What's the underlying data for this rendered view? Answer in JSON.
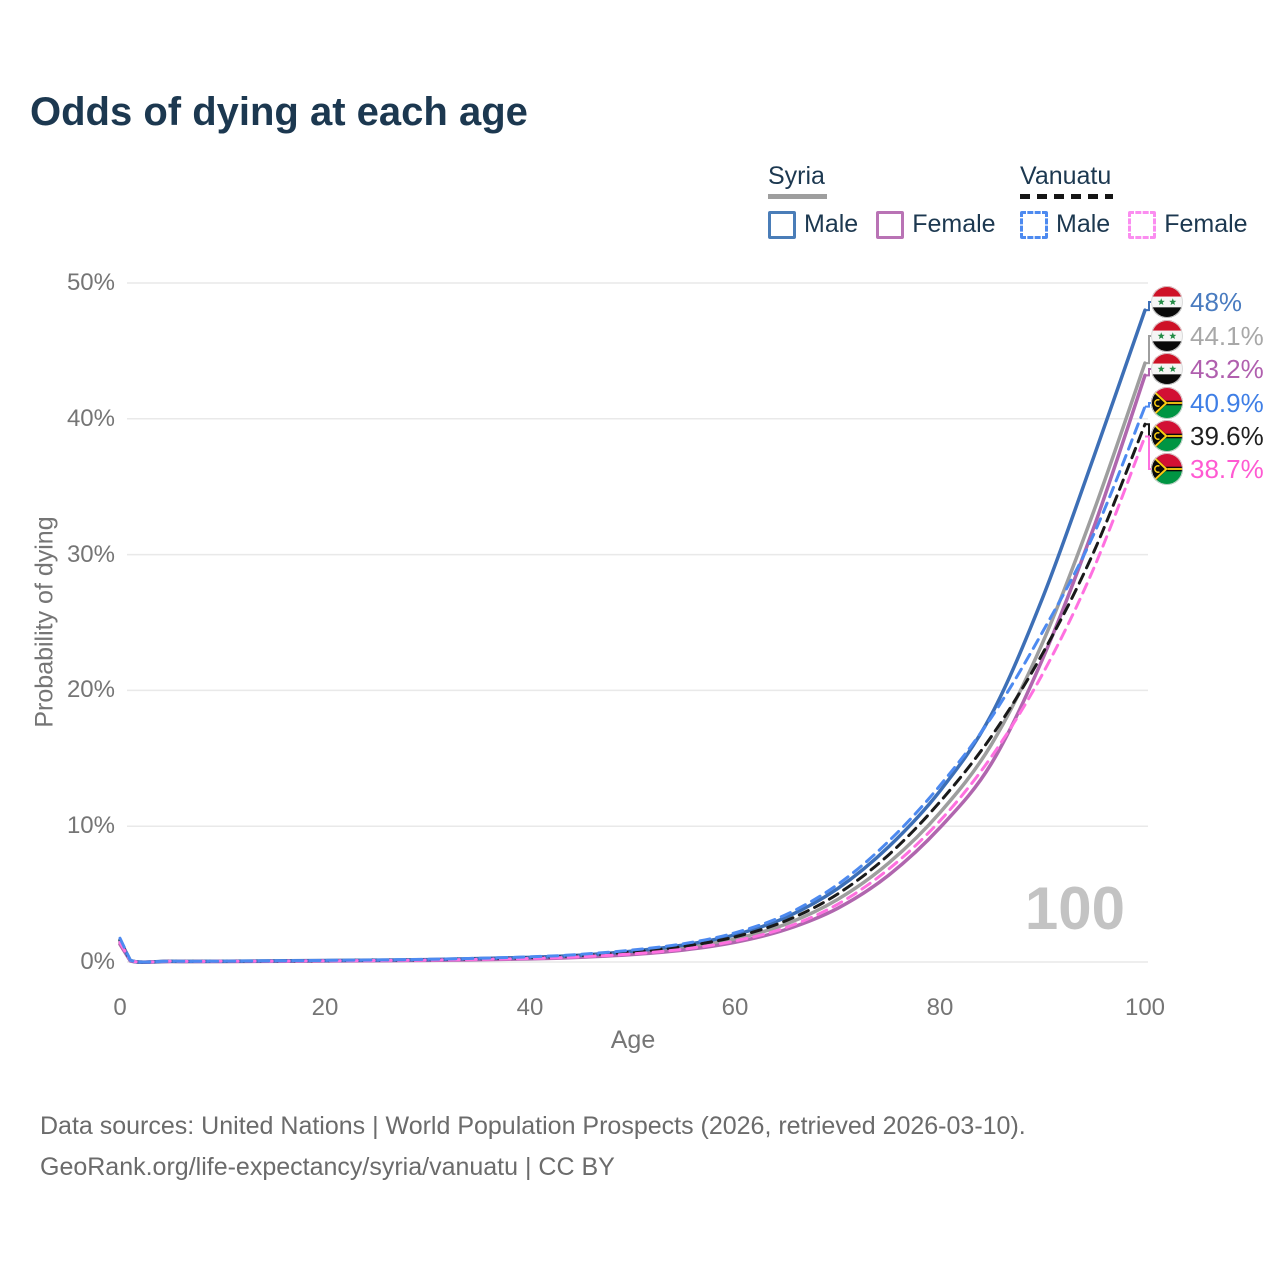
{
  "title": "Odds of dying at each age",
  "watermark": "100",
  "legend": {
    "groups": [
      {
        "name": "Syria",
        "line_style": "solid",
        "underline_color": "#9e9e9e",
        "items": [
          {
            "label": "Male",
            "color": "#4a7db8",
            "dashed": false
          },
          {
            "label": "Female",
            "color": "#b973b5",
            "dashed": false
          }
        ]
      },
      {
        "name": "Vanuatu",
        "line_style": "dashed",
        "underline_color": "#151515",
        "items": [
          {
            "label": "Male",
            "color": "#4d8af0",
            "dashed": true
          },
          {
            "label": "Female",
            "color": "#fb8df0",
            "dashed": true
          }
        ]
      }
    ]
  },
  "footer": {
    "line1": "Data sources: United Nations | World Population Prospects (2026, retrieved 2026-03-10).",
    "line2": "GeoRank.org/life-expectancy/syria/vanuatu | CC BY"
  },
  "chart_data": {
    "type": "line",
    "title": "Odds of dying at each age",
    "xlabel": "Age",
    "ylabel": "Probability of dying",
    "xlim": [
      0,
      100
    ],
    "ylim": [
      0,
      50
    ],
    "x_ticks": [
      0,
      20,
      40,
      60,
      80,
      100
    ],
    "y_ticks": [
      {
        "label": "0%",
        "value": 0
      },
      {
        "label": "10%",
        "value": 10
      },
      {
        "label": "20%",
        "value": 20
      },
      {
        "label": "30%",
        "value": 30
      },
      {
        "label": "40%",
        "value": 40
      },
      {
        "label": "50%",
        "value": 50
      }
    ],
    "grid": "horizontal",
    "legend_position": "top-right",
    "x": [
      0,
      1,
      5,
      10,
      20,
      30,
      40,
      45,
      50,
      55,
      60,
      65,
      70,
      75,
      80,
      85,
      90,
      95,
      100
    ],
    "series": [
      {
        "id": "syria-male",
        "name": "Syria Male",
        "country": "Syria",
        "sex": "Male",
        "color": "#3d6fb6",
        "dashed": false,
        "flag": "syria",
        "end_label": "48%",
        "end_value": 48,
        "label_color": "#4a7cc0",
        "values": [
          1.6,
          0.12,
          0.055,
          0.055,
          0.11,
          0.18,
          0.34,
          0.51,
          0.8,
          1.25,
          2.0,
          3.3,
          5.4,
          8.5,
          12.6,
          18.2,
          26.8,
          37.2,
          48.0
        ]
      },
      {
        "id": "syria-both",
        "name": "Syria",
        "country": "Syria",
        "sex": "Both",
        "color": "#9e9e9e",
        "dashed": false,
        "flag": "syria",
        "end_label": "44.1%",
        "end_value": 44.1,
        "label_color": "#a8a8a8",
        "values": [
          1.45,
          0.1,
          0.045,
          0.045,
          0.09,
          0.15,
          0.28,
          0.42,
          0.66,
          1.05,
          1.7,
          2.8,
          4.6,
          7.3,
          11.0,
          16.0,
          23.5,
          33.2,
          44.1
        ]
      },
      {
        "id": "syria-female",
        "name": "Syria Female",
        "country": "Syria",
        "sex": "Female",
        "color": "#b066ae",
        "dashed": false,
        "flag": "syria",
        "end_label": "43.2%",
        "end_value": 43.2,
        "label_color": "#b05fae",
        "values": [
          1.3,
          0.09,
          0.04,
          0.04,
          0.075,
          0.12,
          0.23,
          0.35,
          0.55,
          0.88,
          1.45,
          2.4,
          3.95,
          6.4,
          9.9,
          14.6,
          22.3,
          32.0,
          43.2
        ]
      },
      {
        "id": "vanuatu-male",
        "name": "Vanuatu Male",
        "country": "Vanuatu",
        "sex": "Male",
        "color": "#4d8af0",
        "dashed": true,
        "flag": "vanuatu",
        "end_label": "40.9%",
        "end_value": 40.9,
        "label_color": "#3f7fe6",
        "values": [
          1.75,
          0.14,
          0.06,
          0.06,
          0.12,
          0.2,
          0.38,
          0.57,
          0.88,
          1.35,
          2.15,
          3.5,
          5.7,
          8.9,
          13.0,
          18.0,
          24.3,
          31.5,
          40.9
        ]
      },
      {
        "id": "vanuatu-both",
        "name": "Vanuatu",
        "country": "Vanuatu",
        "sex": "Both",
        "color": "#1a1a1a",
        "dashed": true,
        "flag": "vanuatu",
        "end_label": "39.6%",
        "end_value": 39.6,
        "label_color": "#1f1f1f",
        "values": [
          1.6,
          0.12,
          0.05,
          0.05,
          0.1,
          0.17,
          0.32,
          0.48,
          0.73,
          1.15,
          1.85,
          3.05,
          5.0,
          7.9,
          11.8,
          16.6,
          22.7,
          30.2,
          39.6
        ]
      },
      {
        "id": "vanuatu-female",
        "name": "Vanuatu Female",
        "country": "Vanuatu",
        "sex": "Female",
        "color": "#ff70e0",
        "dashed": true,
        "flag": "vanuatu",
        "end_label": "38.7%",
        "end_value": 38.7,
        "label_color": "#ff5ad2",
        "values": [
          1.45,
          0.11,
          0.05,
          0.05,
          0.085,
          0.14,
          0.26,
          0.39,
          0.6,
          0.95,
          1.55,
          2.55,
          4.25,
          6.85,
          10.4,
          15.1,
          21.2,
          29.0,
          38.7
        ]
      }
    ]
  }
}
